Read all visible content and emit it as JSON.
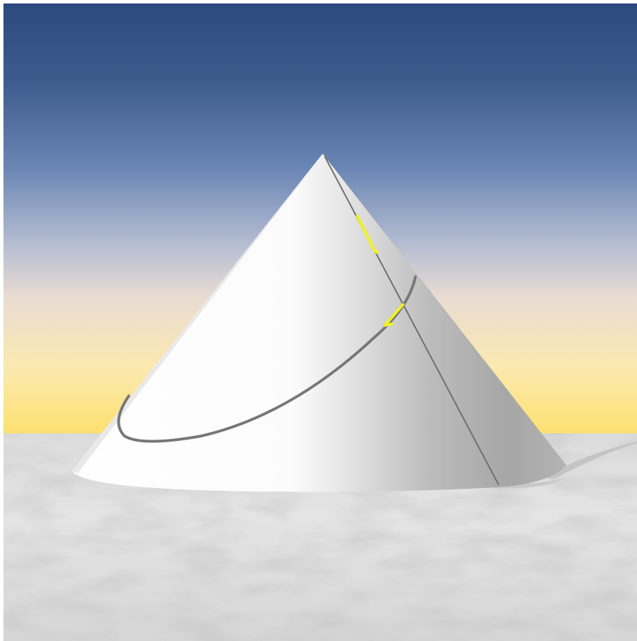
{
  "scene": {
    "colors": {
      "sky_top": "#2e4a7e",
      "sky_mid": "#6a86b4",
      "sky_haze": "#d7d2d6",
      "horizon_glow": "#fde276",
      "ground": "#e6e6e6",
      "cone_light": "#ffffff",
      "cone_shadow": "#9a9a9a",
      "curve": "#707070",
      "highlight": "#f2f21a"
    },
    "objects": [
      "sky",
      "horizon-glow",
      "snowy-ground",
      "cone",
      "cone-shadow",
      "conic-section-ellipse",
      "cone-generator-line",
      "yellow-markers"
    ]
  }
}
